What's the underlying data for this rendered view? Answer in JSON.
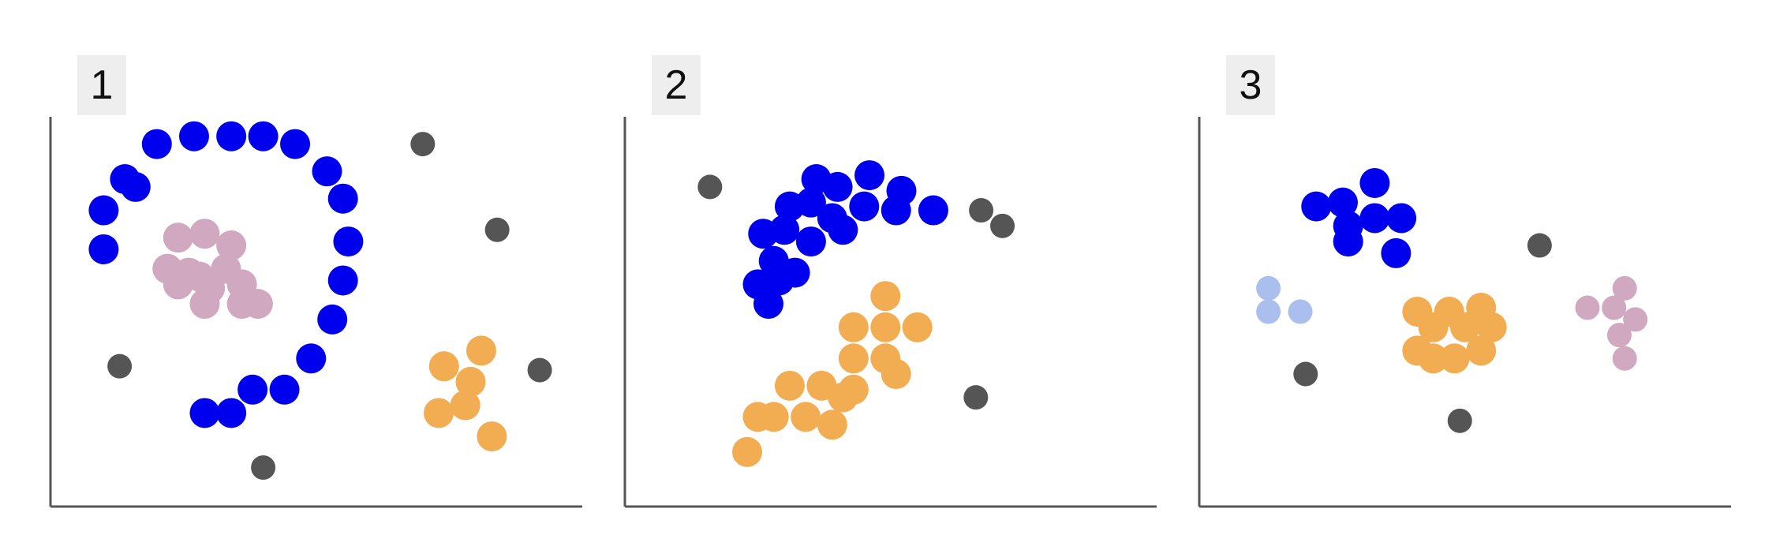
{
  "colors": {
    "axis": "#555555",
    "label_bg": "#eeeeee",
    "blue": "#0000ee",
    "light_blue": "#aabfee",
    "pink": "#d0a8c0",
    "orange": "#f2ad52",
    "noise": "#555555"
  },
  "chart_data": [
    {
      "type": "scatter",
      "panel_label": "1",
      "xlim": [
        0,
        100
      ],
      "ylim": [
        0,
        100
      ],
      "grid": false,
      "axis_ticks": false,
      "series": [
        {
          "color_key": "blue",
          "size": "large",
          "points": [
            [
              14,
              84
            ],
            [
              16,
              82
            ],
            [
              10,
              76
            ],
            [
              10,
              66
            ],
            [
              20,
              93
            ],
            [
              27,
              95
            ],
            [
              34,
              95
            ],
            [
              40,
              95
            ],
            [
              46,
              93
            ],
            [
              52,
              86
            ],
            [
              55,
              79
            ],
            [
              56,
              68
            ],
            [
              55,
              58
            ],
            [
              53,
              48
            ],
            [
              49,
              38
            ],
            [
              44,
              30
            ],
            [
              38,
              30
            ],
            [
              34,
              24
            ],
            [
              29,
              24
            ]
          ]
        },
        {
          "color_key": "pink",
          "size": "large",
          "points": [
            [
              24,
              69
            ],
            [
              29,
              70
            ],
            [
              34,
              67
            ],
            [
              22,
              61
            ],
            [
              26,
              60
            ],
            [
              28,
              59
            ],
            [
              33,
              61
            ],
            [
              24,
              57
            ],
            [
              36,
              57
            ],
            [
              29,
              52
            ],
            [
              36,
              52
            ],
            [
              39,
              52
            ],
            [
              30,
              56
            ]
          ]
        },
        {
          "color_key": "orange",
          "size": "large",
          "points": [
            [
              74,
              36
            ],
            [
              81,
              40
            ],
            [
              79,
              32
            ],
            [
              73,
              24
            ],
            [
              78,
              26
            ],
            [
              83,
              18
            ]
          ]
        },
        {
          "color_key": "noise",
          "size": "small",
          "points": [
            [
              70,
              93
            ],
            [
              84,
              71
            ],
            [
              13,
              36
            ],
            [
              92,
              35
            ],
            [
              40,
              10
            ]
          ]
        }
      ]
    },
    {
      "type": "scatter",
      "panel_label": "2",
      "xlim": [
        0,
        100
      ],
      "ylim": [
        0,
        100
      ],
      "grid": false,
      "axis_ticks": false,
      "series": [
        {
          "color_key": "blue",
          "size": "large",
          "points": [
            [
              36,
              84
            ],
            [
              40,
              82
            ],
            [
              46,
              85
            ],
            [
              52,
              81
            ],
            [
              31,
              77
            ],
            [
              35,
              78
            ],
            [
              39,
              74
            ],
            [
              45,
              77
            ],
            [
              51,
              76
            ],
            [
              58,
              76
            ],
            [
              26,
              70
            ],
            [
              30,
              71
            ],
            [
              35,
              68
            ],
            [
              41,
              71
            ],
            [
              28,
              63
            ],
            [
              29,
              58
            ],
            [
              25,
              57
            ],
            [
              32,
              60
            ],
            [
              27,
              52
            ]
          ]
        },
        {
          "color_key": "orange",
          "size": "large",
          "points": [
            [
              49,
              54
            ],
            [
              43,
              46
            ],
            [
              49,
              46
            ],
            [
              55,
              46
            ],
            [
              43,
              38
            ],
            [
              49,
              38
            ],
            [
              51,
              34
            ],
            [
              31,
              31
            ],
            [
              37,
              31
            ],
            [
              41,
              28
            ],
            [
              43,
              30
            ],
            [
              34,
              23
            ],
            [
              39,
              21
            ],
            [
              25,
              23
            ],
            [
              28,
              23
            ],
            [
              23,
              14
            ]
          ]
        },
        {
          "color_key": "noise",
          "size": "small",
          "points": [
            [
              16,
              82
            ],
            [
              67,
              76
            ],
            [
              71,
              72
            ],
            [
              66,
              28
            ]
          ]
        }
      ]
    },
    {
      "type": "scatter",
      "panel_label": "3",
      "xlim": [
        0,
        100
      ],
      "ylim": [
        0,
        100
      ],
      "grid": false,
      "axis_ticks": false,
      "series": [
        {
          "color_key": "blue",
          "size": "large",
          "points": [
            [
              33,
              83
            ],
            [
              22,
              77
            ],
            [
              27,
              78
            ],
            [
              28,
              72
            ],
            [
              33,
              74
            ],
            [
              38,
              74
            ],
            [
              28,
              68
            ],
            [
              37,
              65
            ]
          ]
        },
        {
          "color_key": "light_blue",
          "size": "small",
          "points": [
            [
              13,
              56
            ],
            [
              13,
              50
            ],
            [
              19,
              50
            ]
          ]
        },
        {
          "color_key": "orange",
          "size": "large",
          "points": [
            [
              41,
              50
            ],
            [
              47,
              50
            ],
            [
              53,
              51
            ],
            [
              44,
              46
            ],
            [
              50,
              46
            ],
            [
              55,
              46
            ],
            [
              41,
              40
            ],
            [
              44,
              38
            ],
            [
              48,
              38
            ],
            [
              53,
              40
            ]
          ]
        },
        {
          "color_key": "pink",
          "size": "small",
          "points": [
            [
              73,
              51
            ],
            [
              78,
              51
            ],
            [
              80,
              56
            ],
            [
              82,
              48
            ],
            [
              79,
              44
            ],
            [
              80,
              38
            ]
          ]
        },
        {
          "color_key": "noise",
          "size": "small",
          "points": [
            [
              64,
              67
            ],
            [
              20,
              34
            ],
            [
              49,
              22
            ]
          ]
        }
      ]
    }
  ]
}
